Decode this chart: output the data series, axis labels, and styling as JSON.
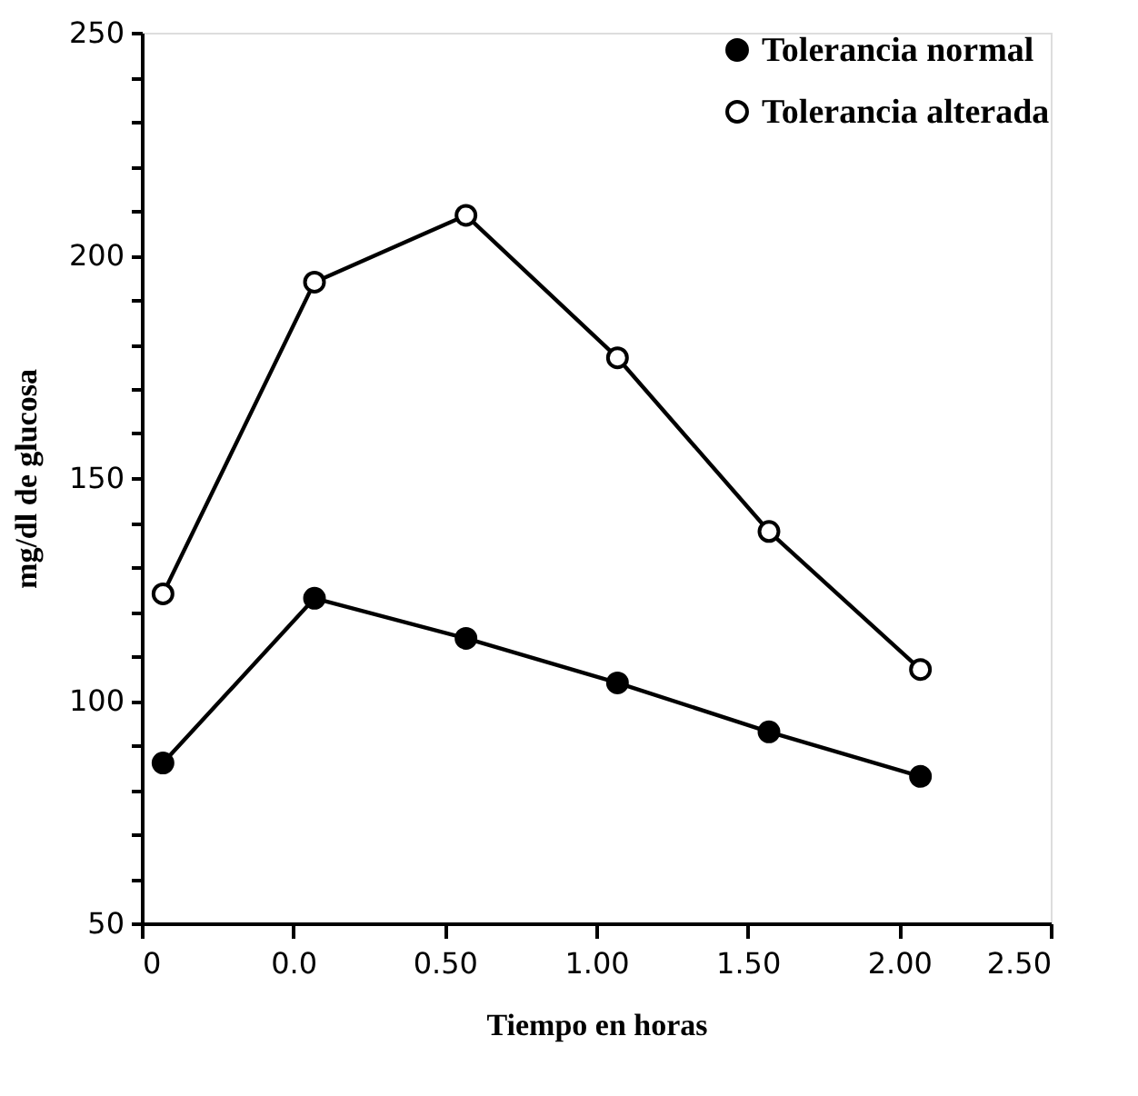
{
  "chart_data": {
    "type": "line",
    "xlabel": "Tiempo en horas",
    "ylabel": "mg/dl de glucosa",
    "x": [
      -0.43,
      0.07,
      0.57,
      1.07,
      1.57,
      2.07
    ],
    "series": [
      {
        "name": "Tolerancia normal",
        "color": "#000000",
        "values": [
          86,
          123,
          114,
          104,
          93,
          83
        ]
      },
      {
        "name": "Tolerancia alterada",
        "color": "#000000",
        "values": [
          124,
          194,
          209,
          177,
          138,
          107
        ]
      }
    ],
    "xlim": [
      -0.5,
      2.5
    ],
    "xticks": [
      {
        "value": -0.5,
        "label": "0"
      },
      {
        "value": 0,
        "label": "0.0"
      },
      {
        "value": 0.5,
        "label": "0.50"
      },
      {
        "value": 1,
        "label": "1.00"
      },
      {
        "value": 1.5,
        "label": "1.50"
      },
      {
        "value": 2,
        "label": "2.00"
      },
      {
        "value": 2.5,
        "label": "2.50"
      }
    ],
    "ylim": [
      50,
      250
    ],
    "yticks": [
      50,
      {
        "value": 60,
        "label": null
      },
      {
        "value": 70,
        "label": null
      },
      {
        "value": 80,
        "label": null
      },
      {
        "value": 90,
        "label": null
      },
      100,
      {
        "value": 110,
        "label": null
      },
      {
        "value": 120,
        "label": null
      },
      {
        "value": 130,
        "label": null
      },
      {
        "value": 140,
        "label": null
      },
      150,
      {
        "value": 160,
        "label": null
      },
      {
        "value": 170,
        "label": null
      },
      {
        "value": 180,
        "label": null
      },
      {
        "value": 190,
        "label": null
      },
      200,
      {
        "value": 210,
        "label": null
      },
      {
        "value": 220,
        "label": null
      },
      {
        "value": 230,
        "label": null
      },
      {
        "value": 240,
        "label": null
      },
      250
    ],
    "grid": false,
    "legend": "top right",
    "marker": "circle",
    "line_style": "solid"
  }
}
